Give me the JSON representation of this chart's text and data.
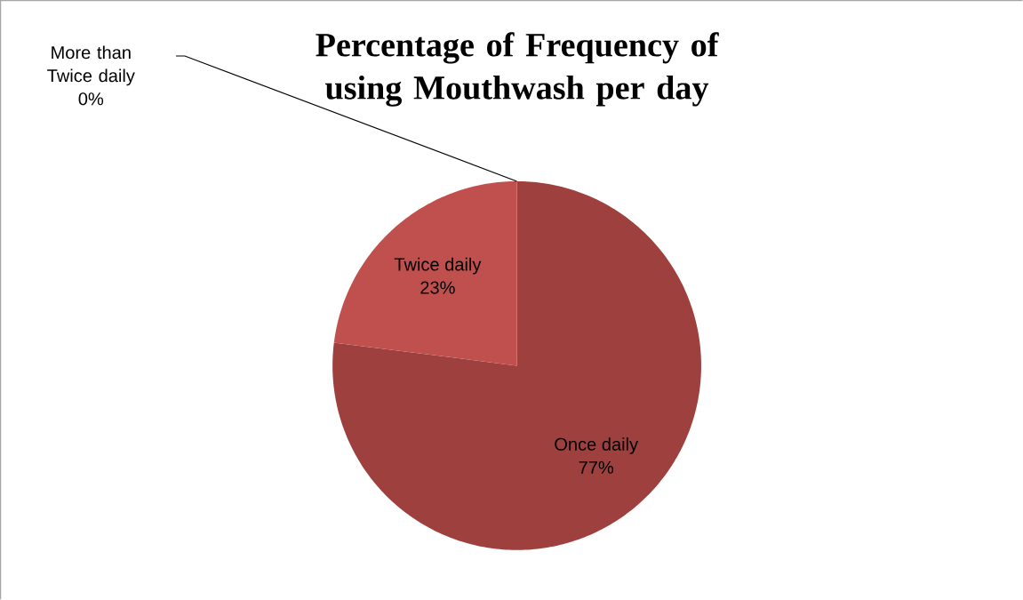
{
  "chart_data": {
    "type": "pie",
    "title": "Percentage of Frequency of using Mouthwash per day",
    "categories": [
      "Once daily",
      "Twice daily",
      "More than Twice daily"
    ],
    "values": [
      77,
      23,
      0
    ],
    "colors": [
      "#9e413e",
      "#c0504d",
      "#9bbb59"
    ],
    "data_labels": true,
    "value_labels": [
      "77%",
      "23%",
      "0%"
    ],
    "legend": false
  }
}
